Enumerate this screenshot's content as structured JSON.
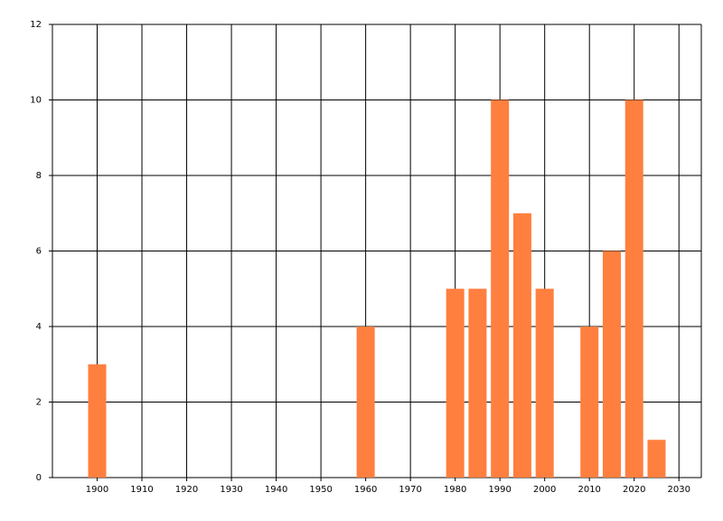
{
  "chart_data": {
    "type": "bar",
    "x": [
      1900,
      1960,
      1980,
      1985,
      1990,
      1995,
      2000,
      2010,
      2015,
      2020,
      2025
    ],
    "values": [
      3,
      4,
      5,
      5,
      10,
      7,
      5,
      4,
      6,
      10,
      1
    ],
    "color": "#ff7f3f",
    "xlim": [
      1890,
      2035
    ],
    "xticks": [
      1900,
      1910,
      1920,
      1930,
      1940,
      1950,
      1960,
      1970,
      1980,
      1990,
      2000,
      2010,
      2020,
      2030
    ],
    "ylim": [
      0,
      12
    ],
    "yticks": [
      0,
      2,
      4,
      6,
      8,
      10,
      12
    ],
    "grid": true
  }
}
